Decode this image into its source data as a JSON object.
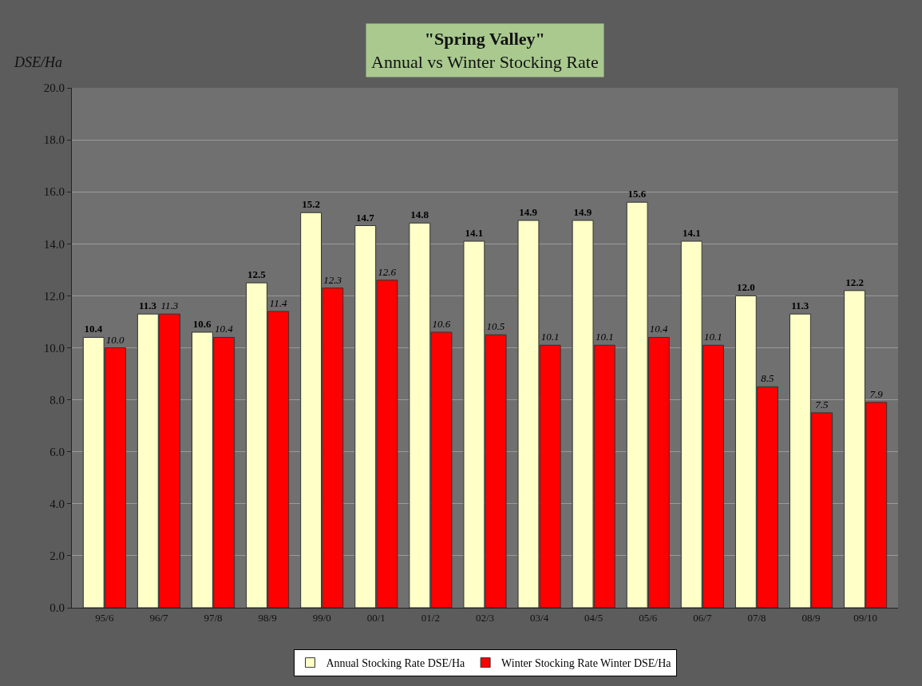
{
  "chart_data": {
    "type": "bar",
    "title": "\"Spring Valley\"",
    "subtitle": "Annual vs Winter Stocking Rate",
    "ylabel": "DSE/Ha",
    "categories": [
      "95/6",
      "96/7",
      "97/8",
      "98/9",
      "99/0",
      "00/1",
      "01/2",
      "02/3",
      "03/4",
      "04/5",
      "05/6",
      "06/7",
      "07/8",
      "08/9",
      "09/10"
    ],
    "series": [
      {
        "name": "Annual Stocking Rate DSE/Ha",
        "color": "#ffffc8",
        "values": [
          10.4,
          11.3,
          10.6,
          12.5,
          15.2,
          14.7,
          14.8,
          14.1,
          14.9,
          14.9,
          15.6,
          14.1,
          12.0,
          11.3,
          12.2
        ],
        "value_labels": [
          "10.4",
          "11.3",
          "10.6",
          "12.5",
          "15.2",
          "14.7",
          "14.8",
          "14.1",
          "14.9",
          "14.9",
          "15.6",
          "14.1",
          "12.0",
          "11.3",
          "12.2"
        ]
      },
      {
        "name": "Winter Stocking Rate Winter DSE/Ha",
        "color": "#ff0000",
        "values": [
          10.0,
          11.3,
          10.4,
          11.4,
          12.3,
          12.6,
          10.6,
          10.5,
          10.1,
          10.1,
          10.4,
          10.1,
          8.5,
          7.5,
          7.9
        ],
        "value_labels": [
          "10.0",
          "11.3",
          "10.4",
          "11.4",
          "12.3",
          "12.6",
          "10.6",
          "10.5",
          "10.1",
          "10.1",
          "10.4",
          "10.1",
          "8.5",
          "7.5",
          "7.9"
        ]
      }
    ],
    "ylim": [
      0,
      20
    ],
    "yticks": [
      {
        "value": 0,
        "label": "0.0"
      },
      {
        "value": 2,
        "label": "2.0"
      },
      {
        "value": 4,
        "label": "4.0"
      },
      {
        "value": 6,
        "label": "6.0"
      },
      {
        "value": 8,
        "label": "8.0"
      },
      {
        "value": 10,
        "label": "10.0"
      },
      {
        "value": 12,
        "label": "12.0"
      },
      {
        "value": 14,
        "label": "14.0"
      },
      {
        "value": 16,
        "label": "16.0"
      },
      {
        "value": 18,
        "label": "18.0"
      },
      {
        "value": 20,
        "label": "20.0"
      }
    ],
    "grid": "y",
    "legend": "bottom"
  }
}
